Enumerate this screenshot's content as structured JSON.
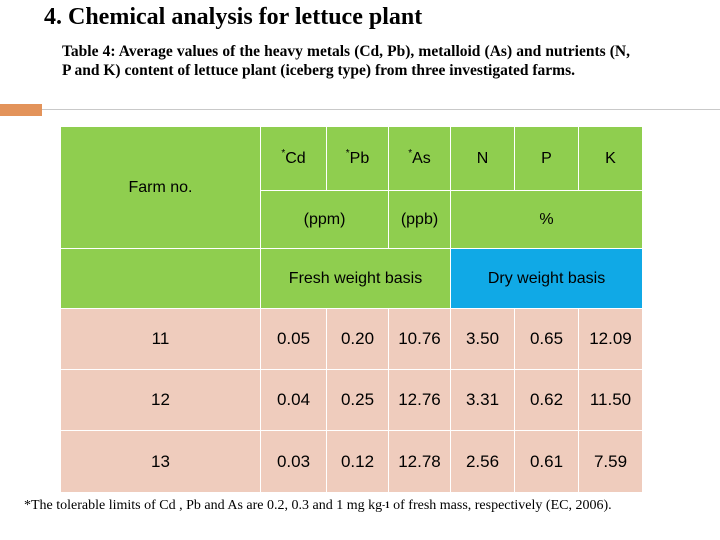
{
  "heading": "4.   Chemical analysis for lettuce plant",
  "caption": "Table 4: Average values of the heavy metals (Cd, Pb), metalloid (As) and nutrients (N, P and K) content of lettuce plant (iceberg type) from three investigated farms.",
  "table": {
    "farm_label": "Farm no.",
    "columns": [
      {
        "mark": "*",
        "label": "Cd"
      },
      {
        "mark": "*",
        "label": "Pb"
      },
      {
        "mark": "*",
        "label": "As"
      },
      {
        "mark": "",
        "label": "N"
      },
      {
        "mark": "",
        "label": "P"
      },
      {
        "mark": "",
        "label": "K"
      }
    ],
    "units": {
      "ppm": "(ppm)",
      "ppb": "(ppb)",
      "percent": "%"
    },
    "basis": {
      "fresh": "Fresh weight basis",
      "dry": "Dry weight basis"
    },
    "rows": [
      [
        "11",
        "0.05",
        "0.20",
        "10.76",
        "3.50",
        "0.65",
        "12.09"
      ],
      [
        "12",
        "0.04",
        "0.25",
        "12.76",
        "3.31",
        "0.62",
        "11.50"
      ],
      [
        "13",
        "0.03",
        "0.12",
        "12.78",
        "2.56",
        "0.61",
        "7.59"
      ]
    ]
  },
  "footnote": {
    "text_before": "*The tolerable limits of Cd , Pb and As are 0.2, 0.3 and 1 mg kg",
    "superscript": "-1",
    "text_after": " of fresh mass, respectively (EC, 2006)."
  },
  "colors": {
    "header_green": "#8fce4f",
    "header_blue": "#10a9e6",
    "body_pink": "#efccbd",
    "accent_orange": "#e3935a"
  }
}
